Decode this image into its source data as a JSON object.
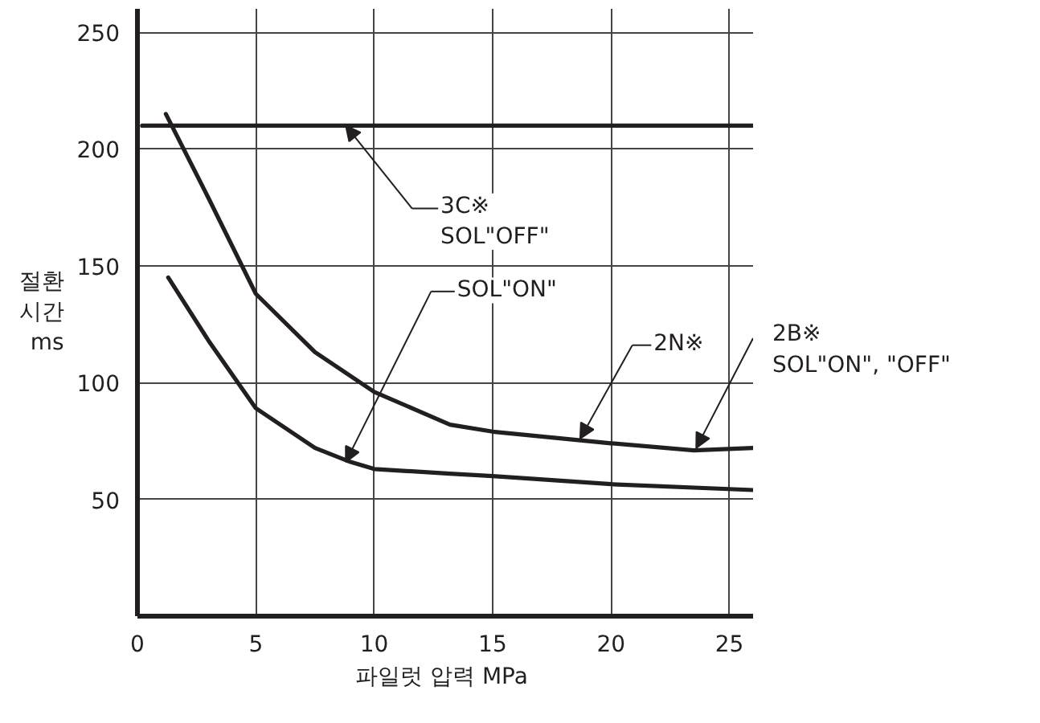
{
  "chart_data": {
    "type": "line",
    "xlabel": "파일럿 압력  MPa",
    "ylabel": "절환 시간 ms",
    "xlim": [
      0,
      26
    ],
    "ylim": [
      0,
      260
    ],
    "xticks": [
      0,
      5,
      10,
      15,
      20,
      25
    ],
    "yticks": [
      50,
      100,
      150,
      200,
      250
    ],
    "grid": true,
    "marker": "none",
    "line_style": "solid",
    "series": [
      {
        "color": "#231f20",
        "x": [
          0.2,
          26
        ],
        "values": [
          210,
          210
        ]
      },
      {
        "color": "#231f20",
        "x": [
          1.2,
          3,
          5,
          7.5,
          10,
          13.2,
          15,
          20,
          23.5,
          26
        ],
        "values": [
          215,
          179,
          138,
          113,
          96,
          82,
          79,
          74,
          71,
          72
        ]
      },
      {
        "color": "#231f20",
        "x": [
          1.3,
          3,
          5,
          7.5,
          9,
          10,
          13.2,
          15,
          20,
          26
        ],
        "values": [
          145,
          118,
          89,
          72,
          66,
          63,
          61,
          60,
          56.5,
          54
        ]
      }
    ],
    "annotations": [
      {
        "text": "3C※\nSOL\"OFF\"",
        "x": 8.8,
        "y": 210
      },
      {
        "text": "SOL\"ON\"",
        "x": 8.8,
        "y": 66
      },
      {
        "text": "2N※",
        "x": 18.7,
        "y": 76
      },
      {
        "text": "2B※\nSOL\"ON\", \"OFF\"",
        "x": 23.6,
        "y": 72
      }
    ]
  }
}
